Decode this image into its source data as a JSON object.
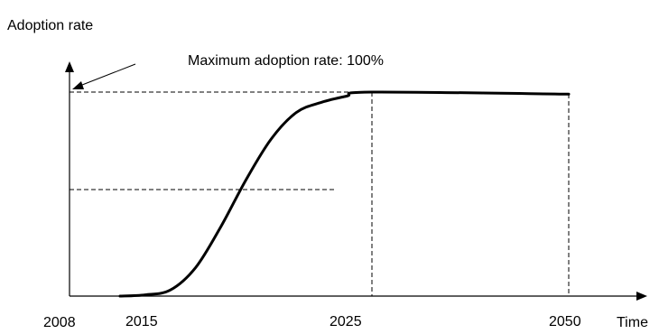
{
  "chart_data": {
    "type": "line",
    "ylabel": "Adoption rate",
    "xlabel": "Time",
    "x_ticks": [
      "2008",
      "2015",
      "2025",
      "2050"
    ],
    "annotation": "Maximum adoption rate: 100%",
    "ylim": [
      0,
      100
    ],
    "max_adoption_rate": 100,
    "midpoint_rate": 50,
    "series": [
      {
        "points": [
          {
            "x": "2015",
            "y": 0
          },
          {
            "x": "2016",
            "y": 0.6
          },
          {
            "x": "2017",
            "y": 3
          },
          {
            "x": "2018",
            "y": 14
          },
          {
            "x": "2019",
            "y": 34
          },
          {
            "x": "2020",
            "y": 57
          },
          {
            "x": "2021",
            "y": 77
          },
          {
            "x": "2022",
            "y": 90
          },
          {
            "x": "2023",
            "y": 95
          },
          {
            "x": "2024",
            "y": 98
          },
          {
            "x": "2025",
            "y": 100
          },
          {
            "x": "2050",
            "y": 99
          }
        ]
      }
    ],
    "colors": {
      "line": "#000000",
      "axis": "#000000",
      "guides": "#000000"
    }
  }
}
